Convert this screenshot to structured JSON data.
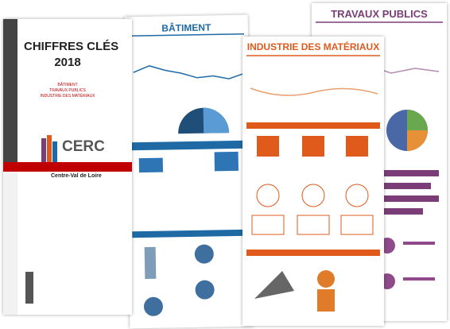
{
  "cover": {
    "title": "CHIFFRES CLÉS",
    "year": "2018",
    "sectors": [
      "BÂTIMENT",
      "TRAVAUX PUBLICS",
      "INDUSTRIE DES MATÉRIAUX"
    ],
    "logo": "CERC",
    "region": "Centre-Val de Loire"
  },
  "pages": [
    {
      "title": "BÂTIMENT"
    },
    {
      "title": "INDUSTRIE DES MATÉRIAUX"
    },
    {
      "title": "TRAVAUX PUBLICS"
    }
  ]
}
